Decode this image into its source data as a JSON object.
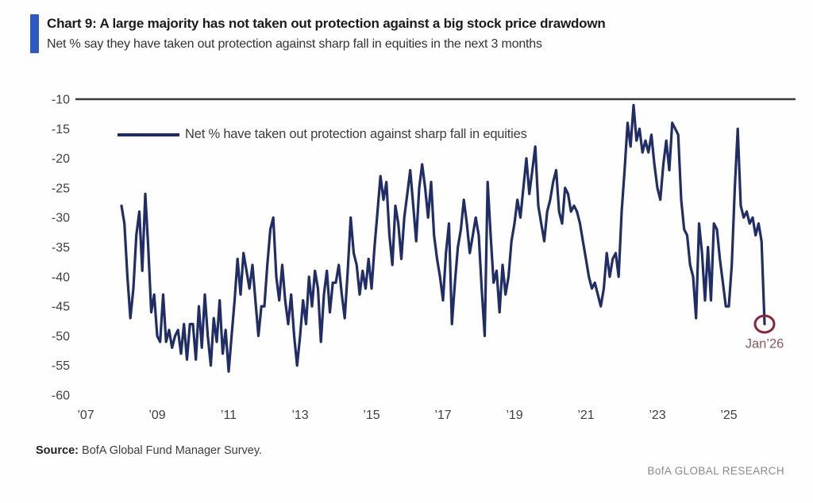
{
  "header": {
    "title": "Chart 9: A large majority has not taken out protection against a big stock price drawdown",
    "subtitle": "Net % say they have taken out protection against sharp fall in equities in the next 3 months"
  },
  "legend": {
    "label": "Net % have taken out protection against sharp fall in equities"
  },
  "footer": {
    "source_label": "Source:",
    "source_text": " BofA Global Fund Manager Survey.",
    "brand": "BofA GLOBAL RESEARCH"
  },
  "colors": {
    "accent_bar": "#2b5ac6",
    "series_line": "#1f2d69",
    "top_rule": "#3a3a3a",
    "axis_text": "#3f3f3f",
    "annotation_circle": "#8b2433",
    "annotation_text": "#96555c"
  },
  "chart_data": {
    "type": "line",
    "title": "Chart 9: A large majority has not taken out protection against a big stock price drawdown",
    "subtitle": "Net % say they have taken out protection against sharp fall in equities in the next 3 months",
    "grid": false,
    "legend_position": "top-left",
    "xlim": [
      2007.0,
      2026.9
    ],
    "ylim": [
      -60,
      -10
    ],
    "y_ticks": [
      -10,
      -15,
      -20,
      -25,
      -30,
      -35,
      -40,
      -45,
      -50,
      -55,
      -60
    ],
    "y_tick_labels": [
      "-10",
      "-15",
      "-20",
      "-25",
      "-30",
      "-35",
      "-40",
      "-45",
      "-50",
      "-55",
      "-60"
    ],
    "x_tick_years": [
      2007,
      2009,
      2011,
      2013,
      2015,
      2017,
      2019,
      2021,
      2023,
      2025
    ],
    "x_tick_labels": [
      "’07",
      "’09",
      "’11",
      "’13",
      "’15",
      "’17",
      "’19",
      "’21",
      "’23",
      "’25"
    ],
    "series": [
      {
        "name": "Net % have taken out protection against sharp fall in equities",
        "x_start": 2008.0,
        "x_step": 0.0833333,
        "values": [
          -28,
          -31,
          -40,
          -47,
          -42,
          -33,
          -29,
          -39,
          -26,
          -35,
          -46,
          -43,
          -50,
          -51,
          -43,
          -51,
          -49,
          -52,
          -50,
          -49,
          -53,
          -48,
          -54,
          -48,
          -48,
          -54,
          -45,
          -52,
          -43,
          -50,
          -55,
          -47,
          -51,
          -44,
          -53,
          -49,
          -56,
          -50,
          -44,
          -37,
          -43,
          -36,
          -39,
          -42,
          -38,
          -44,
          -50,
          -45,
          -45,
          -38,
          -32,
          -30,
          -40,
          -44,
          -38,
          -44,
          -48,
          -43,
          -50,
          -55,
          -50,
          -44,
          -48,
          -40,
          -45,
          -39,
          -42,
          -51,
          -43,
          -39,
          -46,
          -41,
          -41,
          -38,
          -43,
          -47,
          -39,
          -30,
          -36,
          -38,
          -43,
          -39,
          -42,
          -37,
          -42,
          -35,
          -29,
          -23,
          -27,
          -24,
          -33,
          -38,
          -28,
          -31,
          -37,
          -30,
          -26,
          -22,
          -28,
          -34,
          -25,
          -21,
          -25,
          -30,
          -24,
          -33,
          -37,
          -40,
          -44,
          -36,
          -31,
          -48,
          -41,
          -35,
          -32,
          -27,
          -31,
          -36,
          -33,
          -30,
          -33,
          -42,
          -50,
          -24,
          -33,
          -41,
          -39,
          -46,
          -38,
          -43,
          -40,
          -34,
          -31,
          -27,
          -30,
          -25,
          -20,
          -26,
          -22,
          -18,
          -28,
          -31,
          -34,
          -29,
          -27,
          -24,
          -22,
          -29,
          -31,
          -25,
          -26,
          -29,
          -28,
          -29,
          -31,
          -34,
          -37,
          -40,
          -42,
          -41,
          -43,
          -45,
          -42,
          -36,
          -40,
          -37,
          -36,
          -40,
          -29,
          -22,
          -14,
          -18,
          -11,
          -17,
          -15,
          -19,
          -17,
          -19,
          -16,
          -21,
          -25,
          -27,
          -21,
          -17,
          -22,
          -14,
          -15,
          -16,
          -27,
          -32,
          -33,
          -38,
          -40,
          -47,
          -31,
          -36,
          -44,
          -35,
          -44,
          -31,
          -32,
          -37,
          -41,
          -45,
          -45,
          -38,
          -25,
          -15,
          -28,
          -30,
          -29,
          -31,
          -30,
          -33,
          -31,
          -34,
          -48
        ]
      }
    ],
    "annotation": {
      "x": 2026.0,
      "y": -48,
      "label": "Jan’26"
    }
  }
}
